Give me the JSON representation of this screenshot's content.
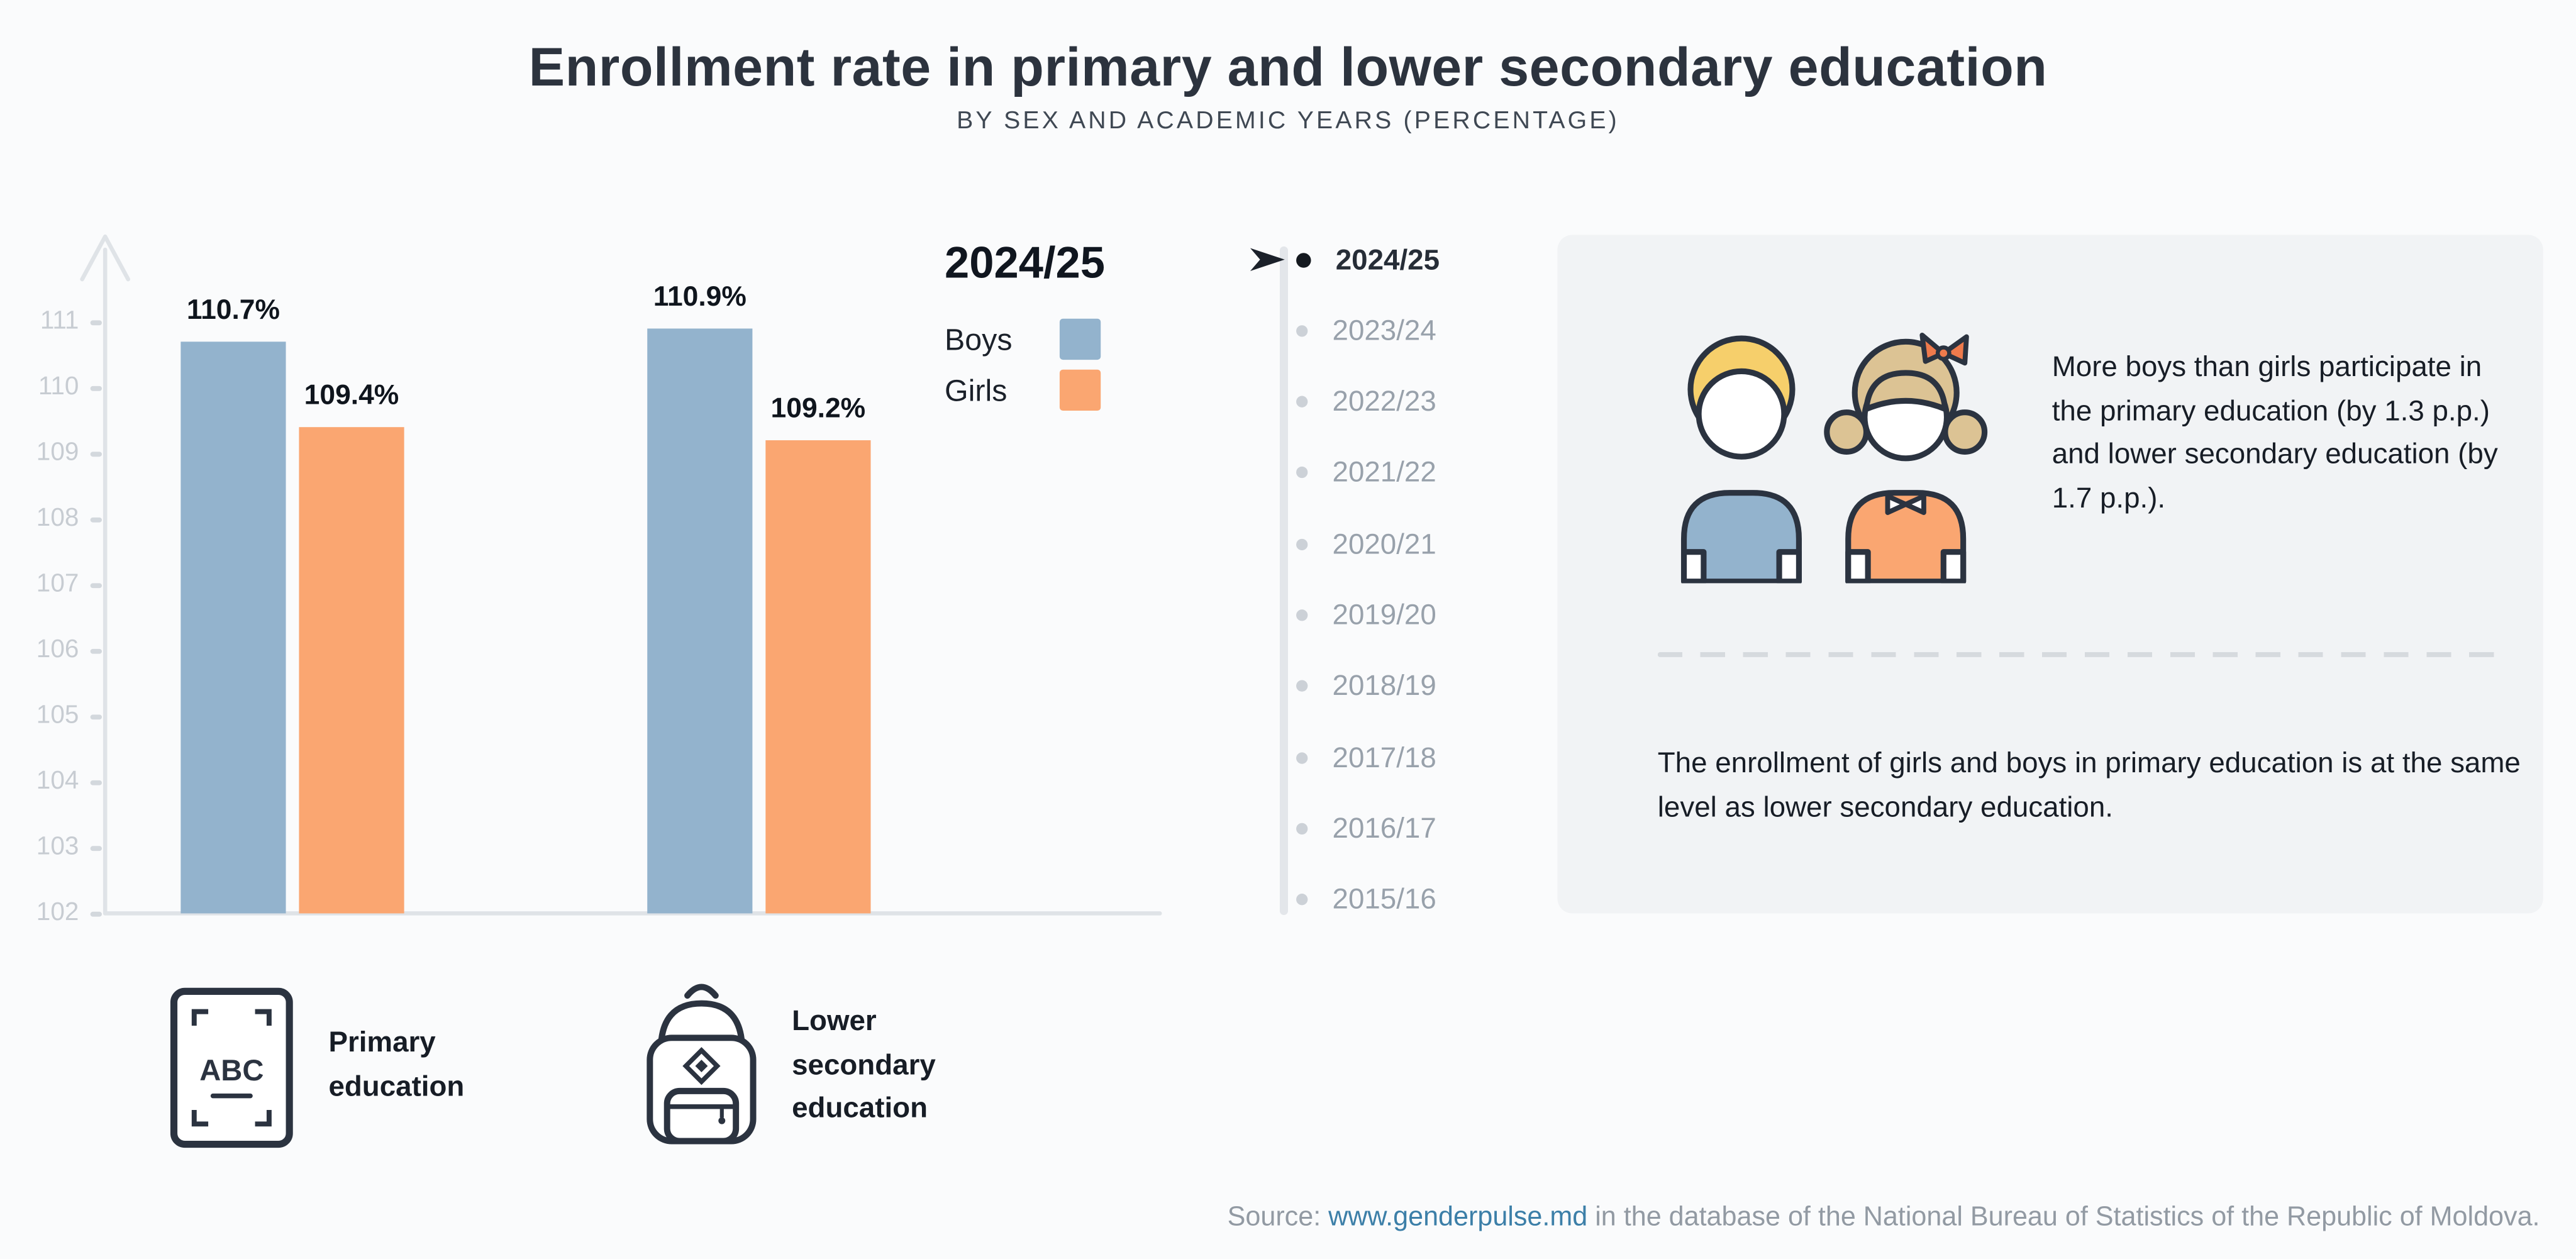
{
  "header": {
    "title": "Enrollment rate in primary and lower secondary education",
    "subtitle": "BY SEX AND ACADEMIC YEARS (PERCENTAGE)"
  },
  "chart_data": {
    "type": "bar",
    "title": "Enrollment rate in primary and lower secondary education",
    "subtitle": "BY SEX AND ACADEMIC YEARS (PERCENTAGE)",
    "academic_year": "2024/25",
    "categories": [
      "Primary education",
      "Lower secondary education"
    ],
    "series": [
      {
        "name": "Boys",
        "color": "#93b3cd",
        "values": [
          110.7,
          110.9
        ],
        "labels": [
          "110.7%",
          "110.9%"
        ]
      },
      {
        "name": "Girls",
        "color": "#faa671",
        "values": [
          109.4,
          109.2
        ],
        "labels": [
          "109.4%",
          "109.2%"
        ]
      }
    ],
    "xlabel": "",
    "ylabel": "",
    "ylim": [
      102,
      111.5
    ],
    "yticks": [
      111,
      110,
      109,
      108,
      107,
      106,
      105,
      104,
      103,
      102
    ],
    "grid": false,
    "legend_title": "2024/25",
    "legend_position": "top-right"
  },
  "legend": {
    "title": "2024/25",
    "items": [
      {
        "label": "Boys",
        "color": "#93b3cd"
      },
      {
        "label": "Girls",
        "color": "#faa671"
      }
    ]
  },
  "timeline": {
    "selected": "2024/25",
    "years": [
      "2024/25",
      "2023/24",
      "2022/23",
      "2021/22",
      "2020/21",
      "2019/20",
      "2018/19",
      "2017/18",
      "2016/17",
      "2015/16"
    ]
  },
  "insights": {
    "more_boys": "More boys than girls participate in the primary education (by 1.3 p.p.) and lower secondary education (by 1.7 p.p.).",
    "same_level": "The enrollment of girls and boys in primary education is at the same level as lower secondary education."
  },
  "category_legend": [
    {
      "icon": "abc-book-icon",
      "icon_text": "ABC",
      "label": "Primary education"
    },
    {
      "icon": "backpack-icon",
      "label": "Lower secondary education"
    }
  ],
  "footer": {
    "prefix": "Source: ",
    "link_text": "www.genderpulse.md",
    "suffix": " in the database of the National Bureau of Statistics of the Republic of Moldova."
  },
  "colors": {
    "background": "#fafbfc",
    "panel": "#f1f3f5",
    "boys": "#93b3cd",
    "girls": "#faa671",
    "dark_text": "#1e242d",
    "muted_text": "#98a1ab",
    "axis": "#dfe3e7",
    "link": "#3c7fa8"
  }
}
